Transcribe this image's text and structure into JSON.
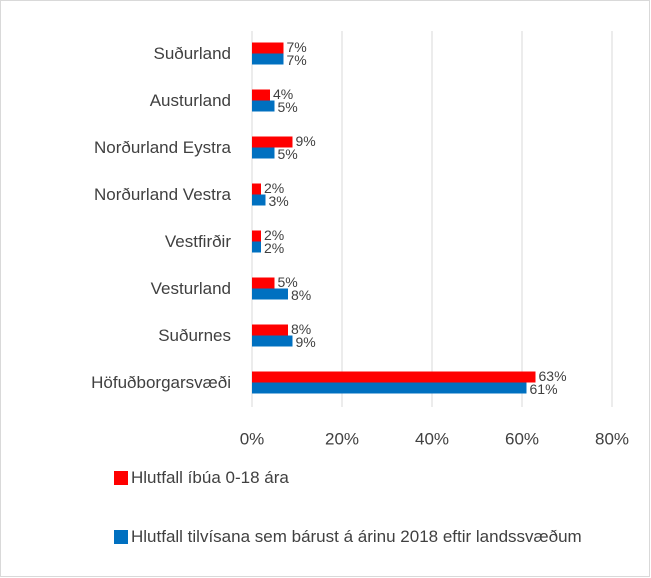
{
  "chart_data": {
    "type": "bar",
    "orientation": "horizontal",
    "categories": [
      "Suðurland",
      "Austurland",
      "Norðurland Eystra",
      "Norðurland Vestra",
      "Vestfirðir",
      "Vesturland",
      "Suðurnes",
      "Höfuðborgarsvæði"
    ],
    "series": [
      {
        "name": "Hlutfall íbúa 0-18 ára",
        "color": "#ff0000",
        "values": [
          7,
          4,
          9,
          2,
          2,
          5,
          8,
          63
        ],
        "value_labels": [
          "7%",
          "4%",
          "9%",
          "2%",
          "2%",
          "5%",
          "8%",
          "63%"
        ]
      },
      {
        "name": "Hlutfall tilvísana sem bárust á árinu 2018 eftir landssvæðum",
        "color": "#0070c0",
        "values": [
          7,
          5,
          5,
          3,
          2,
          8,
          9,
          61
        ],
        "value_labels": [
          "7%",
          "5%",
          "5%",
          "3%",
          "2%",
          "8%",
          "9%",
          "61%"
        ]
      }
    ],
    "xlim": [
      0,
      80
    ],
    "xticks": [
      {
        "value": 0,
        "label": "0%"
      },
      {
        "value": 20,
        "label": "20%"
      },
      {
        "value": 40,
        "label": "40%"
      },
      {
        "value": 60,
        "label": "60%"
      },
      {
        "value": 80,
        "label": "80%"
      }
    ],
    "grid": true
  }
}
